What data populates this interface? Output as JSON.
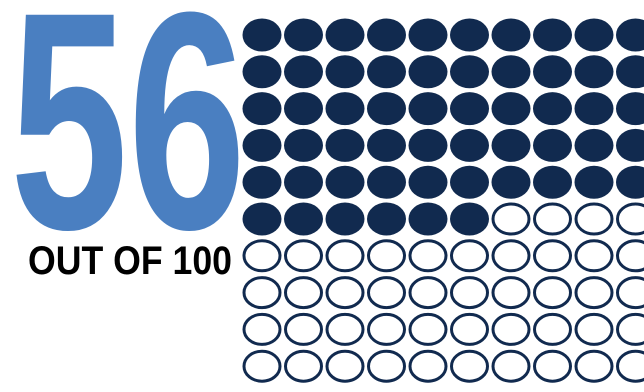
{
  "chart_data": {
    "type": "waffle",
    "value": 56,
    "total": 100,
    "label": "OUT OF 100",
    "value_color": "#4a7fc1",
    "dot_color": "#112a4f"
  }
}
